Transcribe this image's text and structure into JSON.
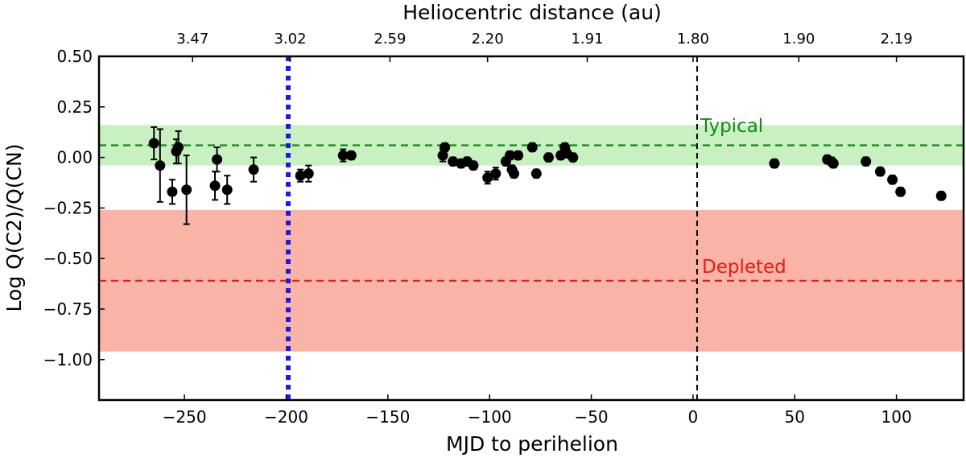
{
  "chart_data": {
    "type": "scatter",
    "title": "",
    "xlabel": "MJD to perihelion",
    "ylabel": "Log Q(C2)/Q(CN)",
    "top_xlabel": "Heliocentric distance (au)",
    "xlim": [
      -292,
      133
    ],
    "ylim": [
      -1.2,
      0.5
    ],
    "x_ticks": [
      -250,
      -200,
      -150,
      -100,
      -50,
      0,
      50,
      100
    ],
    "x_tick_labels": [
      "−250",
      "−200",
      "−150",
      "−100",
      "−50",
      "0",
      "50",
      "100"
    ],
    "y_ticks": [
      0.5,
      0.25,
      0.0,
      -0.25,
      -0.5,
      -0.75,
      -1.0
    ],
    "y_tick_labels": [
      "0.50",
      "0.25",
      "0.00",
      "−0.25",
      "−0.50",
      "−0.75",
      "−1.00"
    ],
    "top_ticks": [
      {
        "x": -246,
        "label": "3.47"
      },
      {
        "x": -198,
        "label": "3.02"
      },
      {
        "x": -149,
        "label": "2.59"
      },
      {
        "x": -101,
        "label": "2.20"
      },
      {
        "x": -52,
        "label": "1.91"
      },
      {
        "x": 0,
        "label": "1.80"
      },
      {
        "x": 52,
        "label": "1.90"
      },
      {
        "x": 100,
        "label": "2.19"
      }
    ],
    "bands": [
      {
        "name": "typical-band",
        "y0": -0.04,
        "y1": 0.16,
        "color": "#c8f0c0"
      },
      {
        "name": "depleted-band",
        "y0": -0.96,
        "y1": -0.26,
        "color": "#f9b3a7"
      }
    ],
    "hlines": [
      {
        "name": "typical-line",
        "y": 0.06,
        "color": "#138a13",
        "label": "Typical"
      },
      {
        "name": "depleted-line",
        "y": -0.61,
        "color": "#e81b14",
        "label": "Depleted"
      }
    ],
    "vlines": [
      {
        "name": "blue-dotted-line",
        "x": -199,
        "color": "#1a1aee",
        "style": "dotted"
      },
      {
        "name": "perihelion-line",
        "x": 2,
        "color": "#000000",
        "style": "dashed"
      }
    ],
    "points": [
      {
        "x": -265,
        "y": 0.07,
        "err": 0.08
      },
      {
        "x": -262,
        "y": -0.04,
        "err": 0.18
      },
      {
        "x": -256,
        "y": -0.17,
        "err": 0.06
      },
      {
        "x": -254,
        "y": 0.03,
        "err": 0.06
      },
      {
        "x": -253,
        "y": 0.05,
        "err": 0.08
      },
      {
        "x": -249,
        "y": -0.16,
        "err": 0.17
      },
      {
        "x": -235,
        "y": -0.14,
        "err": 0.07
      },
      {
        "x": -234,
        "y": -0.01,
        "err": 0.06
      },
      {
        "x": -229,
        "y": -0.16,
        "err": 0.07
      },
      {
        "x": -216,
        "y": -0.06,
        "err": 0.06
      },
      {
        "x": -193,
        "y": -0.09,
        "err": 0.03
      },
      {
        "x": -189,
        "y": -0.08,
        "err": 0.04
      },
      {
        "x": -172,
        "y": 0.01,
        "err": 0.03
      },
      {
        "x": -168,
        "y": 0.01,
        "err": 0.02
      },
      {
        "x": -123,
        "y": 0.01,
        "err": 0.03
      },
      {
        "x": -122,
        "y": 0.05,
        "err": 0.02
      },
      {
        "x": -118,
        "y": -0.02,
        "err": 0.02
      },
      {
        "x": -114,
        "y": -0.03,
        "err": 0.02
      },
      {
        "x": -111,
        "y": -0.02,
        "err": 0.02
      },
      {
        "x": -108,
        "y": -0.04,
        "err": 0.02
      },
      {
        "x": -101,
        "y": -0.1,
        "err": 0.03
      },
      {
        "x": -97,
        "y": -0.08,
        "err": 0.03
      },
      {
        "x": -92,
        "y": -0.02,
        "err": 0.02
      },
      {
        "x": -90,
        "y": 0.01,
        "err": 0.02
      },
      {
        "x": -89,
        "y": -0.06,
        "err": 0.02
      },
      {
        "x": -88,
        "y": -0.08,
        "err": 0.02
      },
      {
        "x": -86,
        "y": 0.01,
        "err": 0.02
      },
      {
        "x": -79,
        "y": 0.05,
        "err": 0.02
      },
      {
        "x": -77,
        "y": -0.08,
        "err": 0.02
      },
      {
        "x": -71,
        "y": 0.0,
        "err": 0.02
      },
      {
        "x": -65,
        "y": 0.01,
        "err": 0.02
      },
      {
        "x": -63,
        "y": 0.05,
        "err": 0.02
      },
      {
        "x": -62,
        "y": 0.02,
        "err": 0.02
      },
      {
        "x": -59,
        "y": 0.0,
        "err": 0.02
      },
      {
        "x": 40,
        "y": -0.03,
        "err": 0.02
      },
      {
        "x": 66,
        "y": -0.01,
        "err": 0.02
      },
      {
        "x": 68,
        "y": -0.02,
        "err": 0.02
      },
      {
        "x": 69,
        "y": -0.03,
        "err": 0.02
      },
      {
        "x": 85,
        "y": -0.02,
        "err": 0.02
      },
      {
        "x": 92,
        "y": -0.07,
        "err": 0.02
      },
      {
        "x": 98,
        "y": -0.11,
        "err": 0.02
      },
      {
        "x": 102,
        "y": -0.17,
        "err": 0.02
      },
      {
        "x": 122,
        "y": -0.19,
        "err": 0.02
      }
    ]
  }
}
